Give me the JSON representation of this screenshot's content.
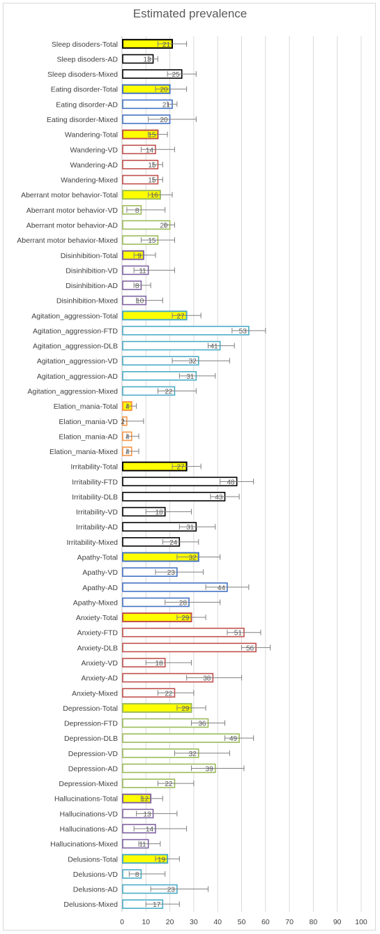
{
  "chart_data": {
    "type": "bar",
    "orientation": "horizontal",
    "title": "Estimated prevalence",
    "xlim": [
      0,
      100
    ],
    "xticks": [
      0,
      10,
      20,
      30,
      40,
      50,
      60,
      70,
      80,
      90,
      100
    ],
    "grid": "vertical",
    "colors": {
      "yellow": "#ffff00",
      "black": "#000000",
      "blue": "#4472c4",
      "red": "#c0504d",
      "green": "#9bbb59",
      "purple": "#8064a2",
      "teal": "#4bacc6",
      "orange": "#f79646"
    },
    "bars": [
      {
        "label": "Sleep disoders-Total",
        "value": 21,
        "err_low": 15,
        "err_high": 27,
        "fill": "#ffff00",
        "edge": "#000000"
      },
      {
        "label": "Sleep disoders-AD",
        "value": 13,
        "err_low": 11,
        "err_high": 15,
        "fill": "#ffffff",
        "edge": "#000000"
      },
      {
        "label": "Sleep disoders-Mixed",
        "value": 25,
        "err_low": 19,
        "err_high": 31,
        "fill": "#ffffff",
        "edge": "#000000"
      },
      {
        "label": "Eating disorder-Total",
        "value": 20,
        "err_low": 14,
        "err_high": 27,
        "fill": "#ffff00",
        "edge": "#4472c4"
      },
      {
        "label": "Eating disorder-AD",
        "value": 21,
        "err_low": 19,
        "err_high": 23,
        "fill": "#ffffff",
        "edge": "#4472c4"
      },
      {
        "label": "Eating disorder-Mixed",
        "value": 20,
        "err_low": 11,
        "err_high": 31,
        "fill": "#ffffff",
        "edge": "#4472c4"
      },
      {
        "label": "Wandering-Total",
        "value": 15,
        "err_low": 11,
        "err_high": 19,
        "fill": "#ffff00",
        "edge": "#c0504d"
      },
      {
        "label": "Wandering-VD",
        "value": 14,
        "err_low": 8,
        "err_high": 22,
        "fill": "#ffffff",
        "edge": "#c0504d"
      },
      {
        "label": "Wandering-AD",
        "value": 15,
        "err_low": 13,
        "err_high": 17,
        "fill": "#ffffff",
        "edge": "#c0504d"
      },
      {
        "label": "Wandering-Mixed",
        "value": 15,
        "err_low": 13,
        "err_high": 17,
        "fill": "#ffffff",
        "edge": "#c0504d"
      },
      {
        "label": "Aberrant motor behavior-Total",
        "value": 16,
        "err_low": 11,
        "err_high": 21,
        "fill": "#ffff00",
        "edge": "#9bbb59"
      },
      {
        "label": "Aberrant motor behavior-VD",
        "value": 8,
        "err_low": 2,
        "err_high": 18,
        "fill": "#ffffff",
        "edge": "#9bbb59"
      },
      {
        "label": "Aberrant motor behavior-AD",
        "value": 20,
        "err_low": 18,
        "err_high": 22,
        "fill": "#ffffff",
        "edge": "#9bbb59"
      },
      {
        "label": "Aberrant motor behavior-Mixed",
        "value": 15,
        "err_low": 8,
        "err_high": 22,
        "fill": "#ffffff",
        "edge": "#9bbb59"
      },
      {
        "label": "Disinhibition-Total",
        "value": 9,
        "err_low": 5,
        "err_high": 14,
        "fill": "#ffff00",
        "edge": "#8064a2"
      },
      {
        "label": "Disinhibition-VD",
        "value": 11,
        "err_low": 5,
        "err_high": 22,
        "fill": "#ffffff",
        "edge": "#8064a2"
      },
      {
        "label": "Disinhibition-AD",
        "value": 8,
        "err_low": 5,
        "err_high": 12,
        "fill": "#ffffff",
        "edge": "#8064a2"
      },
      {
        "label": "Disinhibition-Mixed",
        "value": 10,
        "err_low": 6,
        "err_high": 17,
        "fill": "#ffffff",
        "edge": "#8064a2"
      },
      {
        "label": "Agitation_aggression-Total",
        "value": 27,
        "err_low": 21,
        "err_high": 33,
        "fill": "#ffff00",
        "edge": "#4bacc6"
      },
      {
        "label": "Agitation_aggression-FTD",
        "value": 53,
        "err_low": 46,
        "err_high": 60,
        "fill": "#ffffff",
        "edge": "#4bacc6"
      },
      {
        "label": "Agitation_aggression-DLB",
        "value": 41,
        "err_low": 36,
        "err_high": 47,
        "fill": "#ffffff",
        "edge": "#4bacc6"
      },
      {
        "label": "Agitation_aggression-VD",
        "value": 32,
        "err_low": 21,
        "err_high": 45,
        "fill": "#ffffff",
        "edge": "#4bacc6"
      },
      {
        "label": "Agitation_aggression-AD",
        "value": 31,
        "err_low": 24,
        "err_high": 39,
        "fill": "#ffffff",
        "edge": "#4bacc6"
      },
      {
        "label": "Agitation_aggression-Mixed",
        "value": 22,
        "err_low": 15,
        "err_high": 31,
        "fill": "#ffffff",
        "edge": "#4bacc6"
      },
      {
        "label": "Elation_mania-Total",
        "value": 4,
        "err_low": 2,
        "err_high": 6,
        "fill": "#ffff00",
        "edge": "#f79646"
      },
      {
        "label": "Elation_mania-VD",
        "value": 2,
        "err_low": 0.5,
        "err_high": 9,
        "fill": "#ffffff",
        "edge": "#f79646"
      },
      {
        "label": "Elation_mania-AD",
        "value": 4,
        "err_low": 2,
        "err_high": 7,
        "fill": "#ffffff",
        "edge": "#f79646"
      },
      {
        "label": "Elation_mania-Mixed",
        "value": 4,
        "err_low": 2,
        "err_high": 7,
        "fill": "#ffffff",
        "edge": "#f79646"
      },
      {
        "label": "Irritability-Total",
        "value": 27,
        "err_low": 21,
        "err_high": 33,
        "fill": "#ffff00",
        "edge": "#000000"
      },
      {
        "label": "Irritability-FTD",
        "value": 48,
        "err_low": 41,
        "err_high": 55,
        "fill": "#ffffff",
        "edge": "#000000"
      },
      {
        "label": "Irritability-DLB",
        "value": 43,
        "err_low": 37,
        "err_high": 49,
        "fill": "#ffffff",
        "edge": "#000000"
      },
      {
        "label": "Irritability-VD",
        "value": 18,
        "err_low": 10,
        "err_high": 29,
        "fill": "#ffffff",
        "edge": "#000000"
      },
      {
        "label": "Irritability-AD",
        "value": 31,
        "err_low": 24,
        "err_high": 39,
        "fill": "#ffffff",
        "edge": "#000000"
      },
      {
        "label": "Irritability-Mixed",
        "value": 24,
        "err_low": 17,
        "err_high": 32,
        "fill": "#ffffff",
        "edge": "#000000"
      },
      {
        "label": "Apathy-Total",
        "value": 32,
        "err_low": 23,
        "err_high": 41,
        "fill": "#ffff00",
        "edge": "#4472c4"
      },
      {
        "label": "Apathy-VD",
        "value": 23,
        "err_low": 14,
        "err_high": 34,
        "fill": "#ffffff",
        "edge": "#4472c4"
      },
      {
        "label": "Apathy-AD",
        "value": 44,
        "err_low": 35,
        "err_high": 53,
        "fill": "#ffffff",
        "edge": "#4472c4"
      },
      {
        "label": "Apathy-Mixed",
        "value": 28,
        "err_low": 18,
        "err_high": 41,
        "fill": "#ffffff",
        "edge": "#4472c4"
      },
      {
        "label": "Anxiety-Total",
        "value": 29,
        "err_low": 23,
        "err_high": 35,
        "fill": "#ffff00",
        "edge": "#c0504d"
      },
      {
        "label": "Anxiety-FTD",
        "value": 51,
        "err_low": 44,
        "err_high": 58,
        "fill": "#ffffff",
        "edge": "#c0504d"
      },
      {
        "label": "Anxiety-DLB",
        "value": 56,
        "err_low": 50,
        "err_high": 62,
        "fill": "#ffffff",
        "edge": "#c0504d"
      },
      {
        "label": "Anxiety-VD",
        "value": 18,
        "err_low": 10,
        "err_high": 29,
        "fill": "#ffffff",
        "edge": "#c0504d"
      },
      {
        "label": "Anxiety-AD",
        "value": 38,
        "err_low": 27,
        "err_high": 50,
        "fill": "#ffffff",
        "edge": "#c0504d"
      },
      {
        "label": "Anxiety-Mixed",
        "value": 22,
        "err_low": 15,
        "err_high": 30,
        "fill": "#ffffff",
        "edge": "#c0504d"
      },
      {
        "label": "Depression-Total",
        "value": 29,
        "err_low": 23,
        "err_high": 35,
        "fill": "#ffff00",
        "edge": "#9bbb59"
      },
      {
        "label": "Depression-FTD",
        "value": 36,
        "err_low": 29,
        "err_high": 43,
        "fill": "#ffffff",
        "edge": "#9bbb59"
      },
      {
        "label": "Depression-DLB",
        "value": 49,
        "err_low": 43,
        "err_high": 55,
        "fill": "#ffffff",
        "edge": "#9bbb59"
      },
      {
        "label": "Depression-VD",
        "value": 32,
        "err_low": 22,
        "err_high": 45,
        "fill": "#ffffff",
        "edge": "#9bbb59"
      },
      {
        "label": "Depression-AD",
        "value": 39,
        "err_low": 29,
        "err_high": 51,
        "fill": "#ffffff",
        "edge": "#9bbb59"
      },
      {
        "label": "Depression-Mixed",
        "value": 22,
        "err_low": 15,
        "err_high": 30,
        "fill": "#ffffff",
        "edge": "#9bbb59"
      },
      {
        "label": "Hallucinations-Total",
        "value": 12,
        "err_low": 8,
        "err_high": 17,
        "fill": "#ffff00",
        "edge": "#8064a2"
      },
      {
        "label": "Hallucinations-VD",
        "value": 13,
        "err_low": 6,
        "err_high": 23,
        "fill": "#ffffff",
        "edge": "#8064a2"
      },
      {
        "label": "Hallucinations-AD",
        "value": 14,
        "err_low": 5,
        "err_high": 27,
        "fill": "#ffffff",
        "edge": "#8064a2"
      },
      {
        "label": "Hallucinations-Mixed",
        "value": 11,
        "err_low": 7,
        "err_high": 16,
        "fill": "#ffffff",
        "edge": "#8064a2"
      },
      {
        "label": "Delusions-Total",
        "value": 19,
        "err_low": 14,
        "err_high": 24,
        "fill": "#ffff00",
        "edge": "#4bacc6"
      },
      {
        "label": "Delusions-VD",
        "value": 8,
        "err_low": 3,
        "err_high": 18,
        "fill": "#ffffff",
        "edge": "#4bacc6"
      },
      {
        "label": "Delusions-AD",
        "value": 23,
        "err_low": 12,
        "err_high": 36,
        "fill": "#ffffff",
        "edge": "#4bacc6"
      },
      {
        "label": "Delusions-Mixed",
        "value": 17,
        "err_low": 10,
        "err_high": 24,
        "fill": "#ffffff",
        "edge": "#4bacc6"
      }
    ]
  }
}
